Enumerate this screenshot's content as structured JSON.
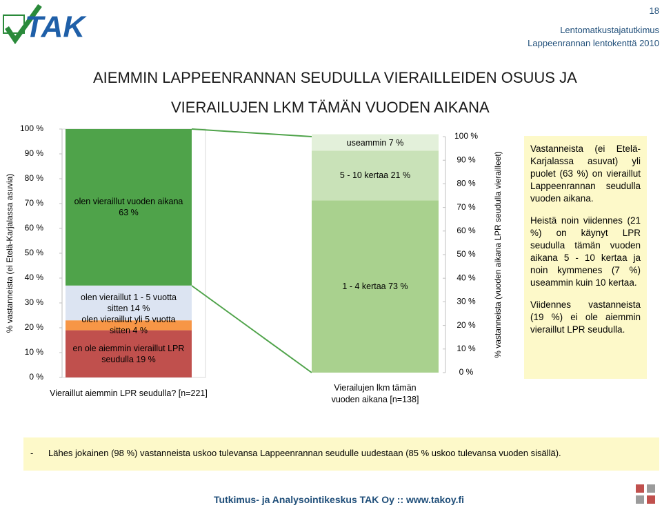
{
  "header": {
    "logo": "TAK",
    "page_number": "18",
    "subtitle_1": "Lentomatkustajatutkimus",
    "subtitle_2": "Lappeenrannan lentokenttä 2010",
    "title_1": "AIEMMIN LAPPEENRANNAN SEUDULLA VIERAILLEIDEN OSUUS JA",
    "title_2": "VIERAILUJEN LKM TÄMÄN VUODEN AIKANA"
  },
  "chart_data": [
    {
      "type": "bar",
      "stacked": true,
      "axis_side": "left",
      "y_label": "% vastanneista (ei Etelä-Karjalassa asuvia)",
      "categories": [
        "Vieraillut aiemmin LPR seudulla? [n=221]"
      ],
      "series": [
        {
          "name": "en ole aiemmin vieraillut LPR seudulla 19 %",
          "color": "#c0504d",
          "values": [
            19
          ]
        },
        {
          "name": "olen vieraillut yli 5 vuotta sitten 4 %",
          "color": "#f79646",
          "values": [
            4
          ]
        },
        {
          "name": "olen vieraillut 1 - 5 vuotta sitten 14 %",
          "color": "#dce4f2",
          "values": [
            14
          ]
        },
        {
          "name": "olen vieraillut vuoden aikana 63 %",
          "color": "#4fa34a",
          "values": [
            63
          ]
        }
      ],
      "ylim": [
        0,
        100
      ],
      "yticks": [
        {
          "value": 0,
          "label": "0 %"
        },
        {
          "value": 10,
          "label": "10 %"
        },
        {
          "value": 20,
          "label": "20 %"
        },
        {
          "value": 30,
          "label": "30 %"
        },
        {
          "value": 40,
          "label": "40 %"
        },
        {
          "value": 50,
          "label": "50 %"
        },
        {
          "value": 60,
          "label": "60 %"
        },
        {
          "value": 70,
          "label": "70 %"
        },
        {
          "value": 80,
          "label": "80 %"
        },
        {
          "value": 90,
          "label": "90 %"
        },
        {
          "value": 100,
          "label": "100 %"
        }
      ]
    },
    {
      "type": "bar",
      "stacked": true,
      "axis_side": "right",
      "y_label": "% vastanneista (vuoden aikana LPR seudulla vierailleet)",
      "categories": [
        "Vierailujen lkm tämän vuoden aikana [n=138]"
      ],
      "series": [
        {
          "name": "1 - 4 kertaa 73 %",
          "color": "#a9d18e",
          "values": [
            73
          ]
        },
        {
          "name": "5 - 10 kertaa 21 %",
          "color": "#c9e2b8",
          "values": [
            21
          ]
        },
        {
          "name": "useammin 7 %",
          "color": "#e3f0da",
          "values": [
            7
          ]
        }
      ],
      "ylim": [
        0,
        100
      ],
      "yticks": [
        {
          "value": 0,
          "label": "0 %"
        },
        {
          "value": 10,
          "label": "10 %"
        },
        {
          "value": 20,
          "label": "20 %"
        },
        {
          "value": 30,
          "label": "30 %"
        },
        {
          "value": 40,
          "label": "40 %"
        },
        {
          "value": 50,
          "label": "50 %"
        },
        {
          "value": 60,
          "label": "60 %"
        },
        {
          "value": 70,
          "label": "70 %"
        },
        {
          "value": 80,
          "label": "80 %"
        },
        {
          "value": 90,
          "label": "90 %"
        },
        {
          "value": 100,
          "label": "100 %"
        }
      ]
    }
  ],
  "side_text": [
    "Vastanneista (ei Etelä-Karjalassa asuvat) yli puolet (63 %) on vieraillut Lappeenrannan seudulla vuoden aikana.",
    "Heistä noin viidennes (21 %) on käynyt LPR seudulla tämän vuoden aikana 5 - 10 kertaa ja noin kymmenes (7 %) useammin kuin 10 kertaa.",
    "Viidennes vastanneista (19 %) ei ole aiemmin vieraillut LPR seudulla."
  ],
  "bottom_note": {
    "bullet": "-",
    "text": "Lähes jokainen (98 %) vastanneista uskoo tulevansa Lappeenrannan seudulle uudestaan (85 % uskoo tulevansa vuoden sisällä)."
  },
  "footer": "Tutkimus- ja Analysointikeskus TAK Oy :: www.takoy.fi"
}
